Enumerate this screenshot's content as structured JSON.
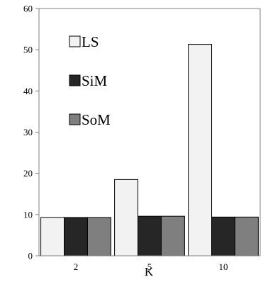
{
  "chart_data": {
    "type": "bar",
    "categories": [
      "2",
      "5",
      "10"
    ],
    "xlabel": "K",
    "ylabel": "",
    "title": "",
    "ylim": [
      0,
      60
    ],
    "yticks": [
      0,
      10,
      20,
      30,
      40,
      50,
      60
    ],
    "grid": false,
    "legend_position": "top-left",
    "series": [
      {
        "name": "LS",
        "color": "#f2f2f2",
        "values": [
          9.3,
          18.5,
          51.3
        ]
      },
      {
        "name": "SiM",
        "color": "#262626",
        "values": [
          9.3,
          9.6,
          9.4
        ]
      },
      {
        "name": "SoM",
        "color": "#7f7f7f",
        "values": [
          9.3,
          9.6,
          9.4
        ]
      }
    ]
  }
}
